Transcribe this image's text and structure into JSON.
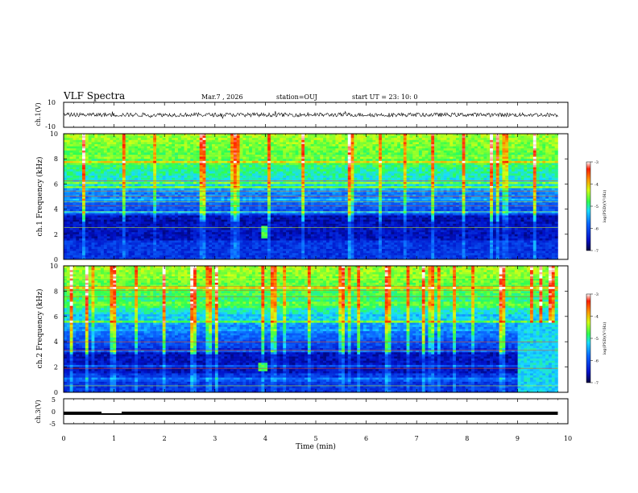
{
  "header": {
    "title": "VLF Spectra",
    "date": "Mar.7 , 2026",
    "station": "station=OUJ",
    "start": "start UT = 23: 10: 0"
  },
  "colors": {
    "colormap": [
      "#0a0a8c",
      "#1a3cff",
      "#19c8ff",
      "#2dff7a",
      "#c8ff19",
      "#ffb400",
      "#ff2a00",
      "#ffffff"
    ],
    "trace": "#000000"
  },
  "chart_data": [
    {
      "type": "line",
      "panel": "ch1-waveform",
      "ylabel": "ch.1(V)",
      "ylim": [
        -10,
        10
      ],
      "yticks": [
        "10",
        "-10"
      ],
      "xlim": [
        0,
        10
      ],
      "note_band": [
        -1.6,
        1.6
      ]
    },
    {
      "type": "heatmap",
      "panel": "ch1-spectrogram",
      "ylabel": "ch.1 Frequency (kHz)",
      "ylim": [
        0,
        10
      ],
      "yticks": [
        "0",
        "2",
        "4",
        "6",
        "8",
        "10"
      ],
      "xlim": [
        0,
        10
      ],
      "colorbar": {
        "label": "log(PSD)(V²/Hz)",
        "range": [
          -7,
          -3
        ],
        "ticks": [
          "-3",
          "-4",
          "-5",
          "-6",
          "-7"
        ]
      },
      "quiet_patches": [
        {
          "t": [
            3.9,
            4.05
          ],
          "f": [
            1.6,
            2.6
          ]
        }
      ]
    },
    {
      "type": "heatmap",
      "panel": "ch2-spectrogram",
      "ylabel": "ch.2 Frequency (kHz)",
      "ylim": [
        0,
        10
      ],
      "yticks": [
        "0",
        "2",
        "4",
        "6",
        "8",
        "10"
      ],
      "xlim": [
        0,
        10
      ],
      "colorbar": {
        "label": "log(PSD)(V²/Hz)",
        "range": [
          -7,
          -3
        ],
        "ticks": [
          "-3",
          "-4",
          "-5",
          "-6",
          "-7"
        ]
      },
      "noisy_interval": [
        9.0,
        9.8
      ],
      "quiet_patches": [
        {
          "t": [
            3.85,
            4.05
          ],
          "f": [
            1.6,
            2.4
          ]
        }
      ]
    },
    {
      "type": "line",
      "panel": "ch3-waveform",
      "ylabel": "ch.3(V)",
      "ylim": [
        -5,
        5
      ],
      "yticks": [
        "5",
        "0",
        "-5"
      ],
      "xlim": [
        0,
        10
      ],
      "level": -0.8,
      "gap": [
        0.75,
        1.15
      ]
    },
    {
      "type": "axis",
      "panel": "time-axis",
      "xlabel": "Time (min)",
      "xticks": [
        "0",
        "1",
        "2",
        "3",
        "4",
        "5",
        "6",
        "7",
        "8",
        "9",
        "10"
      ],
      "xlim": [
        0,
        10
      ],
      "data_end": 9.8
    }
  ]
}
